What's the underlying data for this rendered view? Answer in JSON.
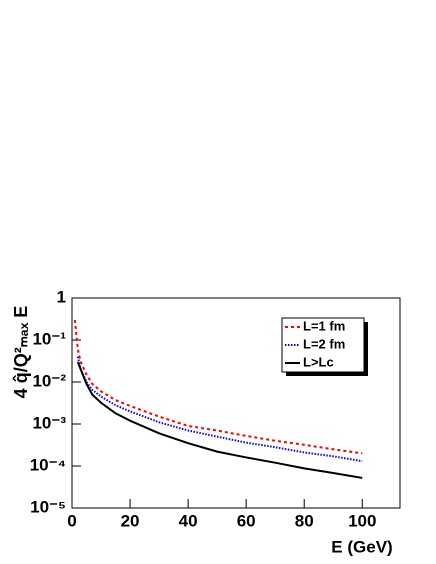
{
  "chart_data": {
    "type": "line",
    "xlabel": "E (GeV)",
    "ylabel": "4 q̂/Q²ₘₐₓ E",
    "x": [
      1,
      2,
      3,
      5,
      7,
      10,
      15,
      20,
      30,
      40,
      50,
      60,
      70,
      80,
      90,
      100
    ],
    "series": [
      {
        "name": "L=1 fm",
        "color": "#ff0000",
        "dash": "3,3",
        "values": [
          0.3,
          0.06,
          0.03,
          0.015,
          0.009,
          0.006,
          0.0037,
          0.0027,
          0.0015,
          0.0009,
          0.0007,
          0.00052,
          0.0004,
          0.00032,
          0.00025,
          0.0002
        ]
      },
      {
        "name": "L=2 fm",
        "color": "#0000ff",
        "dash": "1.5,1.5",
        "values": [
          null,
          0.04,
          0.02,
          0.01,
          0.0065,
          0.0045,
          0.0028,
          0.002,
          0.0011,
          0.0007,
          0.0005,
          0.00036,
          0.00028,
          0.00021,
          0.00017,
          0.00013
        ]
      },
      {
        "name": "L>Lc",
        "color": "#000000",
        "dash": "",
        "values": [
          null,
          0.03,
          0.02,
          0.009,
          0.005,
          0.0032,
          0.0018,
          0.0012,
          0.0006,
          0.00035,
          0.00022,
          0.00016,
          0.00012,
          8.8e-05,
          6.8e-05,
          5.2e-05
        ]
      }
    ],
    "xlim": [
      0,
      113
    ],
    "xticks": [
      0,
      20,
      40,
      60,
      80,
      100
    ],
    "ylim": [
      1e-05,
      1
    ],
    "ylog": true,
    "yticks": [
      {
        "value": 1e-05,
        "label": "10⁻⁵"
      },
      {
        "value": 0.0001,
        "label": "10⁻⁴"
      },
      {
        "value": 0.001,
        "label": "10⁻³"
      },
      {
        "value": 0.01,
        "label": "10⁻²"
      },
      {
        "value": 0.1,
        "label": "10⁻¹"
      },
      1
    ]
  }
}
